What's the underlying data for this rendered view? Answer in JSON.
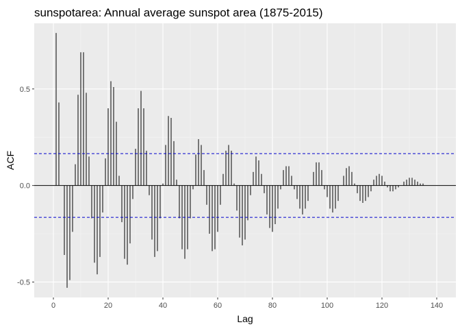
{
  "chart_data": {
    "type": "bar",
    "title": "sunspotarea: Annual average sunspot area (1875-2015)",
    "xlabel": "Lag",
    "ylabel": "ACF",
    "xlim": [
      -7,
      147
    ],
    "ylim": [
      -0.58,
      0.84
    ],
    "x_ticks": [
      0,
      20,
      40,
      60,
      80,
      100,
      120,
      140
    ],
    "x_tick_labels": [
      "0",
      "20",
      "40",
      "60",
      "80",
      "100",
      "120",
      "140"
    ],
    "y_ticks": [
      -0.5,
      0.0,
      0.5
    ],
    "y_tick_labels": [
      "-0.5",
      "0.0",
      "0.5"
    ],
    "confidence_bound": 0.165,
    "grid": true,
    "colors": {
      "panel": "#ebebeb",
      "grid_major": "#ffffff",
      "grid_minor": "#f4f4f4",
      "bars": "#000000",
      "zero_line": "#000000",
      "confidence_lines": "#0000cc"
    },
    "lags": [
      1,
      2,
      3,
      4,
      5,
      6,
      7,
      8,
      9,
      10,
      11,
      12,
      13,
      14,
      15,
      16,
      17,
      18,
      19,
      20,
      21,
      22,
      23,
      24,
      25,
      26,
      27,
      28,
      29,
      30,
      31,
      32,
      33,
      34,
      35,
      36,
      37,
      38,
      39,
      40,
      41,
      42,
      43,
      44,
      45,
      46,
      47,
      48,
      49,
      50,
      51,
      52,
      53,
      54,
      55,
      56,
      57,
      58,
      59,
      60,
      61,
      62,
      63,
      64,
      65,
      66,
      67,
      68,
      69,
      70,
      71,
      72,
      73,
      74,
      75,
      76,
      77,
      78,
      79,
      80,
      81,
      82,
      83,
      84,
      85,
      86,
      87,
      88,
      89,
      90,
      91,
      92,
      93,
      94,
      95,
      96,
      97,
      98,
      99,
      100,
      101,
      102,
      103,
      104,
      105,
      106,
      107,
      108,
      109,
      110,
      111,
      112,
      113,
      114,
      115,
      116,
      117,
      118,
      119,
      120,
      121,
      122,
      123,
      124,
      125,
      126,
      127,
      128,
      129,
      130,
      131,
      132,
      133,
      134,
      135,
      136,
      137,
      138,
      139,
      140
    ],
    "values": [
      0.79,
      0.43,
      0.0,
      -0.36,
      -0.53,
      -0.49,
      -0.24,
      0.11,
      0.47,
      0.69,
      0.69,
      0.48,
      0.15,
      -0.17,
      -0.4,
      -0.46,
      -0.37,
      -0.14,
      0.14,
      0.4,
      0.54,
      0.51,
      0.33,
      0.05,
      -0.19,
      -0.38,
      -0.41,
      -0.3,
      -0.07,
      0.19,
      0.4,
      0.49,
      0.4,
      0.18,
      -0.05,
      -0.28,
      -0.37,
      -0.34,
      -0.17,
      0.01,
      0.21,
      0.36,
      0.35,
      0.23,
      0.03,
      -0.17,
      -0.33,
      -0.38,
      -0.33,
      -0.17,
      -0.02,
      0.16,
      0.24,
      0.21,
      0.08,
      -0.1,
      -0.25,
      -0.34,
      -0.33,
      -0.24,
      -0.1,
      0.06,
      0.18,
      0.21,
      0.18,
      0.01,
      -0.13,
      -0.27,
      -0.31,
      -0.28,
      -0.18,
      -0.05,
      0.07,
      0.15,
      0.13,
      0.06,
      -0.04,
      -0.15,
      -0.22,
      -0.24,
      -0.2,
      -0.12,
      -0.02,
      0.08,
      0.1,
      0.1,
      0.05,
      -0.02,
      -0.07,
      -0.12,
      -0.15,
      -0.12,
      -0.08,
      0.0,
      0.07,
      0.12,
      0.12,
      0.08,
      -0.02,
      -0.06,
      -0.12,
      -0.14,
      -0.12,
      -0.08,
      0.0,
      0.05,
      0.09,
      0.1,
      0.07,
      0.01,
      -0.04,
      -0.08,
      -0.09,
      -0.08,
      -0.06,
      -0.03,
      0.03,
      0.05,
      0.06,
      0.05,
      0.02,
      -0.01,
      -0.03,
      -0.03,
      -0.02,
      -0.01,
      0.0,
      0.02,
      0.03,
      0.04,
      0.04,
      0.03,
      0.02,
      0.01,
      0.01,
      0.0,
      0.0,
      0.0,
      0.0,
      0.0
    ]
  }
}
